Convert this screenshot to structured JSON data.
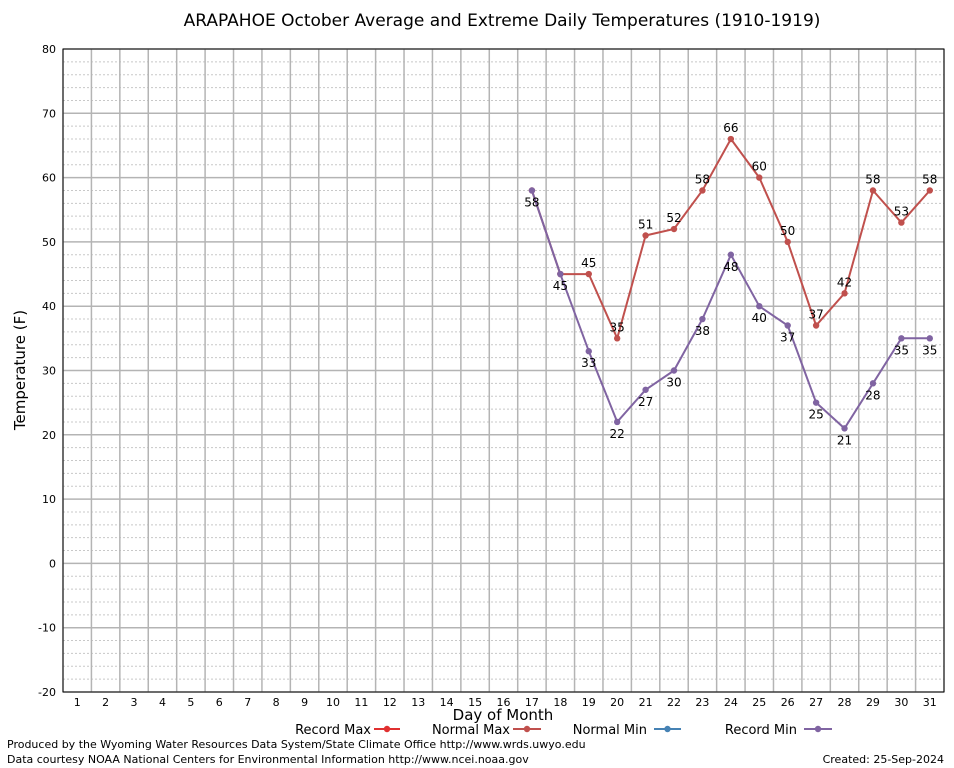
{
  "chart_data": {
    "type": "line",
    "title": "ARAPAHOE October Average and Extreme Daily Temperatures (1910-1919)",
    "xlabel": "Day of Month",
    "ylabel": "Temperature (F)",
    "ylim": [
      -20,
      80
    ],
    "y_ticks": [
      -20,
      -10,
      0,
      10,
      20,
      30,
      40,
      50,
      60,
      70,
      80
    ],
    "categories": [
      "1",
      "2",
      "3",
      "4",
      "5",
      "6",
      "7",
      "8",
      "9",
      "10",
      "11",
      "12",
      "13",
      "14",
      "15",
      "16",
      "17",
      "18",
      "19",
      "20",
      "21",
      "22",
      "23",
      "24",
      "25",
      "26",
      "27",
      "28",
      "29",
      "30",
      "31"
    ],
    "grid": true,
    "legend_position": "bottom",
    "series": [
      {
        "name": "Record Max",
        "color": "#e03030",
        "values": [
          null,
          null,
          null,
          null,
          null,
          null,
          null,
          null,
          null,
          null,
          null,
          null,
          null,
          null,
          null,
          null,
          null,
          null,
          null,
          null,
          null,
          null,
          null,
          null,
          null,
          null,
          null,
          null,
          null,
          null,
          null
        ]
      },
      {
        "name": "Normal Max",
        "color": "#c0504d",
        "values": [
          null,
          null,
          null,
          null,
          null,
          null,
          null,
          null,
          null,
          null,
          null,
          null,
          null,
          null,
          null,
          null,
          58,
          45,
          45,
          35,
          51,
          52,
          58,
          66,
          60,
          50,
          37,
          42,
          58,
          53,
          58
        ],
        "labels": [
          null,
          null,
          null,
          null,
          null,
          null,
          null,
          null,
          null,
          null,
          null,
          null,
          null,
          null,
          null,
          null,
          null,
          null,
          "45",
          "35",
          "51",
          "52",
          "58",
          "66",
          "60",
          "50",
          "37",
          "42",
          "58",
          "53",
          "58"
        ]
      },
      {
        "name": "Normal Min",
        "color": "#4682b4",
        "values": [
          null,
          null,
          null,
          null,
          null,
          null,
          null,
          null,
          null,
          null,
          null,
          null,
          null,
          null,
          null,
          null,
          null,
          null,
          null,
          null,
          null,
          null,
          null,
          null,
          null,
          null,
          null,
          null,
          null,
          null,
          null
        ]
      },
      {
        "name": "Record Min",
        "color": "#8064a2",
        "values": [
          null,
          null,
          null,
          null,
          null,
          null,
          null,
          null,
          null,
          null,
          null,
          null,
          null,
          null,
          null,
          null,
          58,
          45,
          33,
          22,
          27,
          30,
          38,
          48,
          40,
          37,
          25,
          21,
          28,
          35,
          35
        ],
        "labels": [
          null,
          null,
          null,
          null,
          null,
          null,
          null,
          null,
          null,
          null,
          null,
          null,
          null,
          null,
          null,
          null,
          "58",
          "45",
          "33",
          "22",
          "27",
          "30",
          "38",
          "48",
          "40",
          "37",
          "25",
          "21",
          "28",
          "35",
          "35"
        ]
      }
    ]
  },
  "footer": {
    "produced_by": "Produced by the Wyoming Water Resources Data System/State Climate Office http://www.wrds.uwyo.edu",
    "data_courtesy": "Data courtesy NOAA National Centers for Environmental Information http://www.ncei.noaa.gov",
    "created": "Created: 25-Sep-2024"
  }
}
